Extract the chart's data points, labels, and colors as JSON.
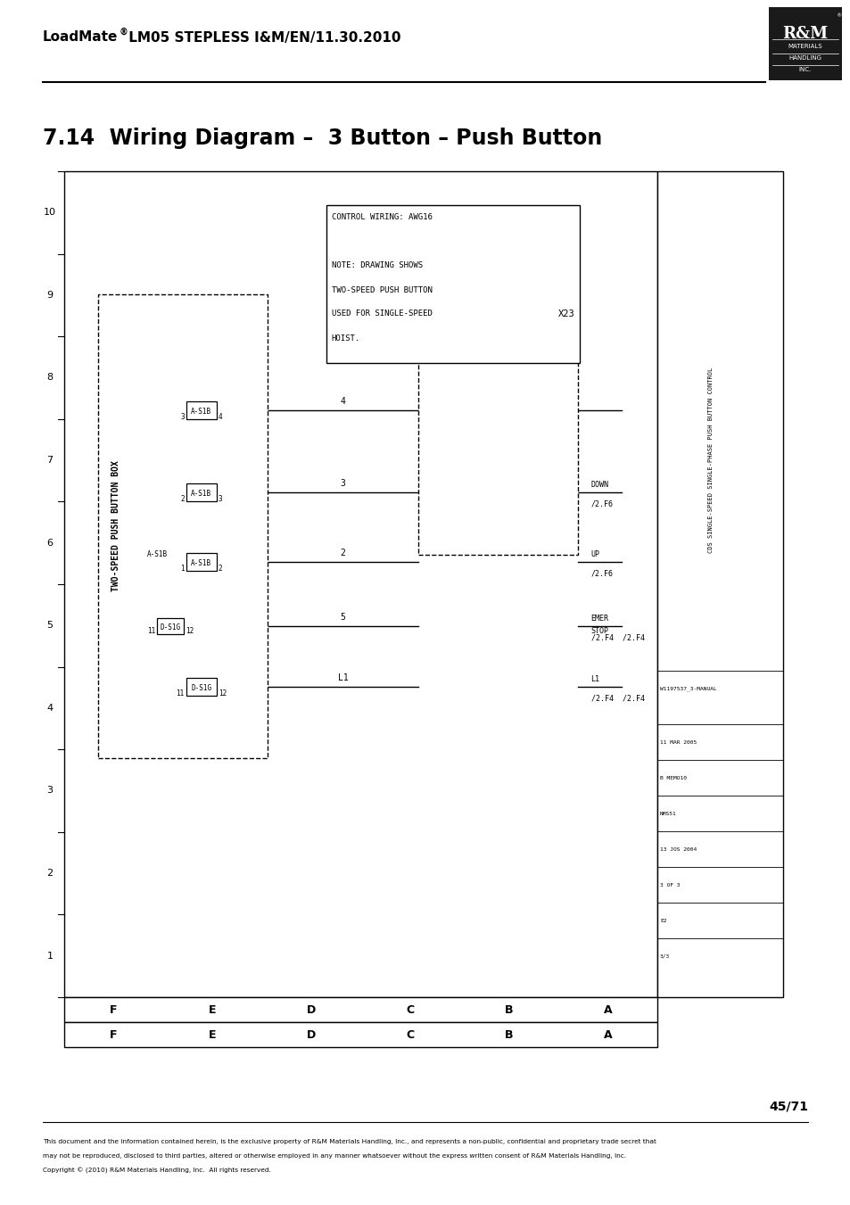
{
  "page_title_bold": "LoadMate",
  "page_title_reg": "®",
  "page_title_rest": "  LM05 STEPLESS I&M/EN/11.30.2010",
  "section_title": "7.14  Wiring Diagram –  3 Button – Push Button",
  "page_number": "45/71",
  "footer_text": "This document and the information contained herein, is the exclusive property of R&M Materials Handling, Inc., and represents a non-public, confidential and proprietary trade secret that\nmay not be reproduced, disclosed to third parties, altered or otherwise employed in any manner whatsoever without the express written consent of R&M Materials Handling, Inc.\nCopyright © (2010) R&M Materials Handling, Inc.  All rights reserved.",
  "bg_color": "#ffffff",
  "logo_bg": "#1a1a1a",
  "note_lines": [
    "CONTROL WIRING: AWG16",
    "",
    "NOTE: DRAWING SHOWS",
    "TWO-SPEED PUSH BUTTON",
    "USED FOR SINGLE-SPEED",
    "HOIST."
  ],
  "col_labels": [
    "F",
    "E",
    "D",
    "C",
    "B",
    "A"
  ],
  "right_vert_text": "CDS SINGLE-SPEED SINGLE-PHASE PUSH BUTTON CONTROL",
  "right_cells": [
    "W1197537_3-MANUAL",
    "11 MAR 2005",
    "B MEMO 10",
    "NMS51",
    "13 JOS 2004"
  ],
  "right_cells2": [
    "3 OF 3",
    "E2",
    "3/3"
  ]
}
